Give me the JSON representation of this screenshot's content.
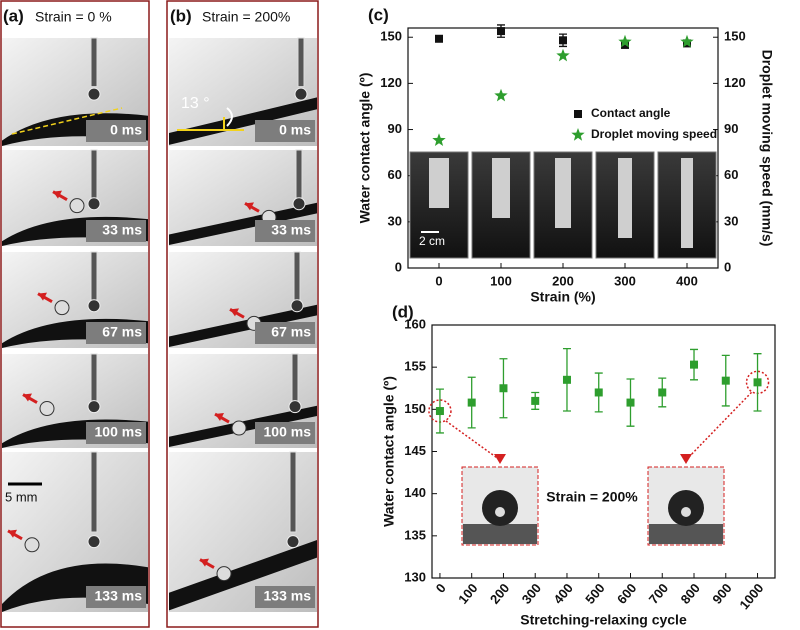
{
  "panels": [
    {
      "label": "(a)",
      "title": "Strain = 0 %",
      "frames": [
        "0 ms",
        "33 ms",
        "67 ms",
        "100 ms",
        "133 ms"
      ],
      "scale_bar": "5 mm"
    },
    {
      "label": "(b)",
      "title": "Strain = 200%",
      "frames": [
        "0 ms",
        "33 ms",
        "67 ms",
        "100 ms",
        "133 ms"
      ],
      "angle": "13 °"
    }
  ],
  "chart_data": [
    {
      "type": "scatter",
      "panel": "(c)",
      "x_label": "Strain (%)",
      "y_label": "Water contact angle (º)",
      "y2_label": "Droplet moving speed (mm/s)",
      "x": [
        0,
        100,
        200,
        300,
        400
      ],
      "xlim": [
        -50,
        450
      ],
      "xticks": [
        0,
        100,
        200,
        300,
        400
      ],
      "ylim": [
        0,
        156
      ],
      "yticks": [
        0,
        30,
        60,
        90,
        120,
        150
      ],
      "y2lim": [
        0,
        156
      ],
      "y2ticks": [
        0,
        30,
        60,
        90,
        120,
        150
      ],
      "series": [
        {
          "name": "Contact angle",
          "color": "#111111",
          "marker": "square",
          "values": [
            149,
            154,
            148,
            145,
            146
          ],
          "errors": [
            2,
            4,
            4,
            1,
            2
          ]
        },
        {
          "name": "Droplet moving speed",
          "color": "#2e9e2e",
          "marker": "star",
          "axis": "y2",
          "values": [
            83,
            112,
            138,
            147,
            147
          ]
        }
      ],
      "inset_scale": "2 cm",
      "legend": "right"
    },
    {
      "type": "scatter",
      "panel": "(d)",
      "x_label": "Stretching-relaxing cycle",
      "y_label": "Water contact angle (º)",
      "x": [
        0,
        100,
        200,
        300,
        400,
        500,
        600,
        700,
        800,
        900,
        1000
      ],
      "xlim": [
        -25,
        1055
      ],
      "xticks": [
        0,
        100,
        200,
        300,
        400,
        500,
        600,
        700,
        800,
        900,
        1000
      ],
      "ylim": [
        130,
        160
      ],
      "yticks": [
        130,
        135,
        140,
        145,
        150,
        155,
        160
      ],
      "series": [
        {
          "name": "Water contact angle",
          "color": "#2e9e2e",
          "marker": "square",
          "values": [
            149.8,
            150.8,
            152.5,
            151,
            153.5,
            152,
            150.8,
            152,
            155.3,
            153.4,
            153.2
          ],
          "errors": [
            2.6,
            3,
            3.5,
            1,
            3.7,
            2.3,
            2.8,
            1.7,
            1.8,
            3,
            3.4
          ]
        }
      ],
      "annotation": "Strain = 200%"
    }
  ]
}
